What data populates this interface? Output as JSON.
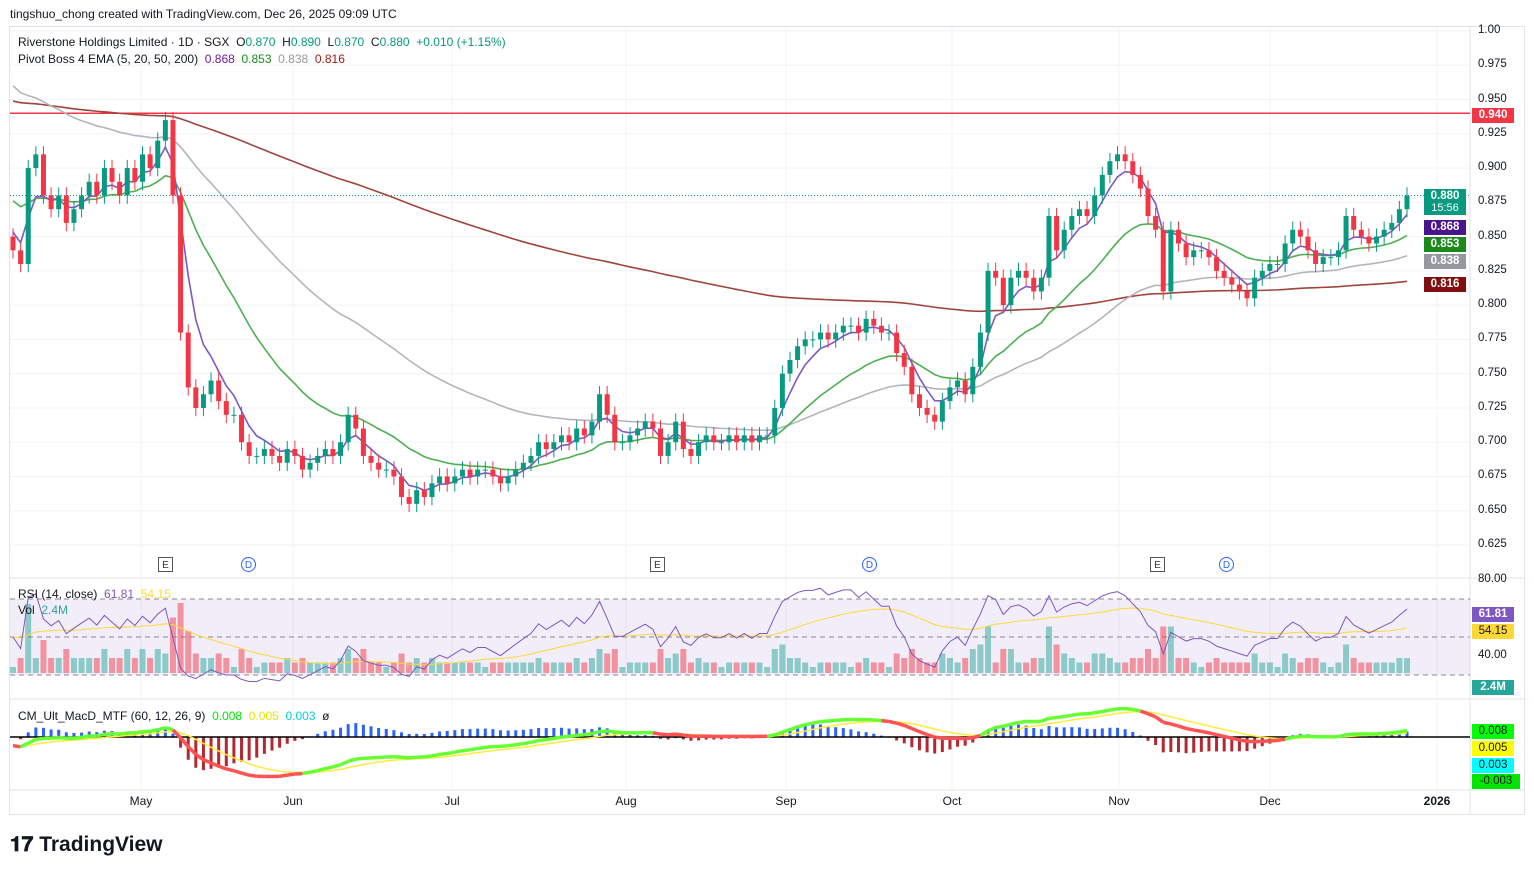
{
  "credit": "tingshuo_chong created with TradingView.com, Dec 26, 2025 09:09 UTC",
  "legend": {
    "symbol": "Riverstone Holdings Limited · 1D · SGX",
    "o_label": "O",
    "o": "0.870",
    "h_label": "H",
    "h": "0.890",
    "l_label": "L",
    "l": "0.870",
    "c_label": "C",
    "c": "0.880",
    "change": "+0.010 (+1.15%)",
    "ema_title": "Pivot Boss 4 EMA (5, 20, 50, 200)",
    "ema5": "0.868",
    "ema20": "0.853",
    "ema50": "0.838",
    "ema200": "0.816"
  },
  "rsi_legend": {
    "title": "RSI (14, close)",
    "rsi": "61.81",
    "ma": "54.15"
  },
  "vol_legend": {
    "title": "Vol",
    "value": "2.4M"
  },
  "macd_legend": {
    "title": "CM_Ult_MacD_MTF (60, 12, 26, 9)",
    "macd": "0.008",
    "signal": "0.005",
    "hist": "0.003",
    "extra": "ø"
  },
  "logo": "TradingView",
  "colors": {
    "up": "#089981",
    "down": "#f23645",
    "ema5": "#7e57c2",
    "ema20": "#4caf50",
    "ema50": "#b2b5be",
    "ema200": "#a1443d",
    "hline": "#f23645",
    "rsi": "#7e57c2",
    "rsi_ma": "#fdd835"
  },
  "chart_data": {
    "type": "candlestick",
    "title": "Riverstone Holdings Limited · 1D · SGX",
    "ylim": [
      0.615,
      1.0
    ],
    "yticks": [
      "1.00",
      "0.975",
      "0.950",
      "0.925",
      "0.900",
      "0.875",
      "0.850",
      "0.825",
      "0.800",
      "0.775",
      "0.750",
      "0.725",
      "0.700",
      "0.675",
      "0.650",
      "0.625"
    ],
    "xticks": [
      "May",
      "Jun",
      "Jul",
      "Aug",
      "Sep",
      "Oct",
      "Nov",
      "Dec",
      "2026"
    ],
    "horizontal_line": 0.94,
    "last_price": "0.880",
    "countdown": "15:56",
    "price_labels": {
      "hline": "0.940",
      "ema5": "0.868",
      "ema20": "0.853",
      "ema50": "0.838",
      "ema200": "0.816"
    },
    "events": [
      "E",
      "D",
      "E",
      "D",
      "E",
      "D"
    ],
    "closes": [
      0.84,
      0.83,
      0.9,
      0.91,
      0.88,
      0.87,
      0.88,
      0.86,
      0.87,
      0.88,
      0.89,
      0.88,
      0.9,
      0.89,
      0.88,
      0.9,
      0.89,
      0.91,
      0.9,
      0.92,
      0.935,
      0.88,
      0.78,
      0.74,
      0.725,
      0.735,
      0.745,
      0.73,
      0.72,
      0.72,
      0.7,
      0.69,
      0.69,
      0.695,
      0.69,
      0.685,
      0.695,
      0.69,
      0.68,
      0.685,
      0.69,
      0.695,
      0.69,
      0.7,
      0.72,
      0.71,
      0.69,
      0.685,
      0.68,
      0.68,
      0.675,
      0.66,
      0.655,
      0.665,
      0.66,
      0.67,
      0.675,
      0.67,
      0.675,
      0.68,
      0.675,
      0.68,
      0.68,
      0.675,
      0.67,
      0.675,
      0.68,
      0.685,
      0.69,
      0.7,
      0.695,
      0.7,
      0.705,
      0.7,
      0.71,
      0.705,
      0.715,
      0.735,
      0.72,
      0.7,
      0.7,
      0.705,
      0.71,
      0.715,
      0.71,
      0.69,
      0.7,
      0.715,
      0.695,
      0.69,
      0.7,
      0.705,
      0.7,
      0.7,
      0.705,
      0.7,
      0.705,
      0.7,
      0.705,
      0.705,
      0.725,
      0.75,
      0.76,
      0.77,
      0.775,
      0.775,
      0.78,
      0.775,
      0.78,
      0.785,
      0.785,
      0.78,
      0.79,
      0.785,
      0.78,
      0.78,
      0.765,
      0.755,
      0.735,
      0.725,
      0.72,
      0.715,
      0.73,
      0.74,
      0.745,
      0.735,
      0.755,
      0.78,
      0.825,
      0.82,
      0.8,
      0.82,
      0.825,
      0.82,
      0.81,
      0.82,
      0.865,
      0.84,
      0.855,
      0.865,
      0.87,
      0.865,
      0.88,
      0.895,
      0.905,
      0.91,
      0.905,
      0.895,
      0.885,
      0.865,
      0.855,
      0.81,
      0.855,
      0.845,
      0.835,
      0.84,
      0.84,
      0.835,
      0.825,
      0.82,
      0.815,
      0.81,
      0.805,
      0.82,
      0.825,
      0.83,
      0.83,
      0.845,
      0.855,
      0.85,
      0.84,
      0.83,
      0.835,
      0.835,
      0.84,
      0.865,
      0.855,
      0.85,
      0.845,
      0.85,
      0.855,
      0.86,
      0.87,
      0.88
    ],
    "rsi": {
      "ylim": [
        20,
        80
      ],
      "yticks": [
        "80.00",
        "40.00"
      ],
      "last": "61.81",
      "ma_last": "54.15"
    },
    "volume": {
      "last": "2.4M"
    },
    "macd": {
      "last": "0.008",
      "signal": "0.005",
      "hist": "0.003",
      "other": "-0.003"
    }
  }
}
